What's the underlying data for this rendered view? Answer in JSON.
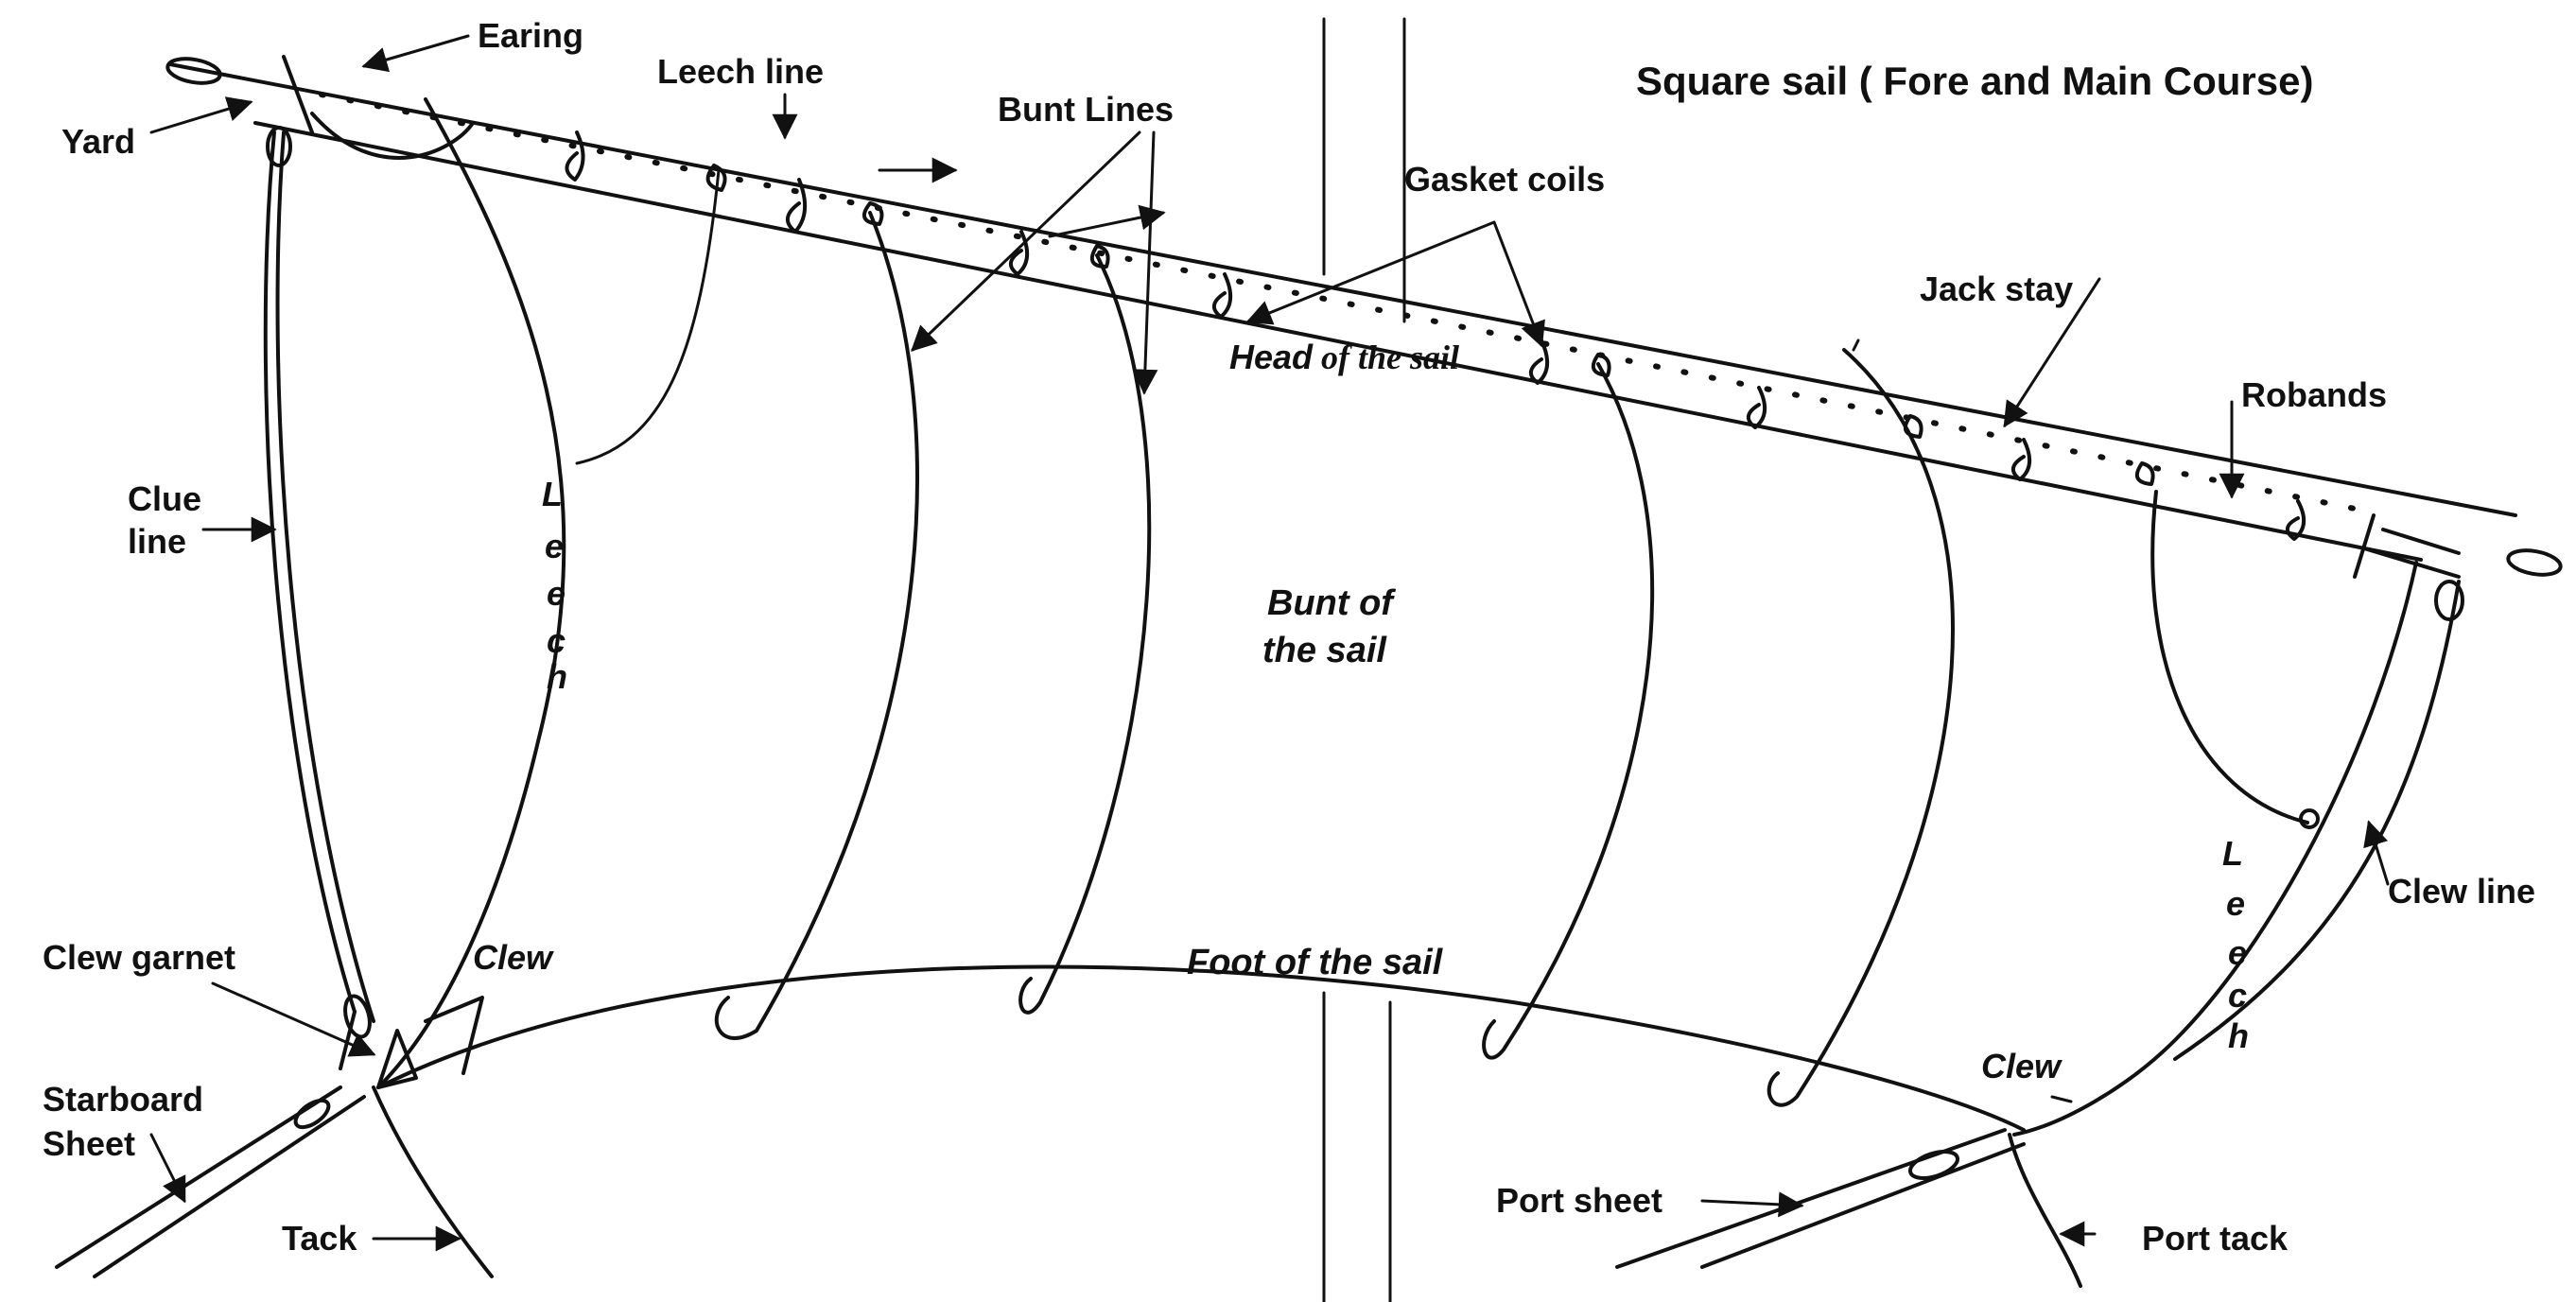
{
  "title": "Square sail ( Fore and Main Course)",
  "labels": {
    "earing": "Earing",
    "yard": "Yard",
    "leech_line": "Leech line",
    "bunt_lines": "Bunt Lines",
    "gasket_coils": "Gasket coils",
    "head_word": "Head",
    "head_rest": " of the sail",
    "jack_stay": "Jack stay",
    "robands": "Robands",
    "clue_line_1": "Clue",
    "clue_line_2": "line",
    "leech_letters_left": [
      "L",
      "e",
      "e",
      "c",
      "h"
    ],
    "leech_letters_right": [
      "L",
      "e",
      "e",
      "c",
      "h"
    ],
    "bunt_1": "Bunt of",
    "bunt_2": "the sail",
    "clew_line": "Clew line",
    "clew_garnet": "Clew garnet",
    "clew_left": "Clew",
    "clew_right": "Clew",
    "foot": "Foot of the sail",
    "starboard_1": "Starboard",
    "starboard_2": "Sheet",
    "tack": "Tack",
    "port_sheet": "Port sheet",
    "port_tack": "Port tack"
  },
  "colors": {
    "ink": "#111111",
    "paper": "#ffffff"
  }
}
